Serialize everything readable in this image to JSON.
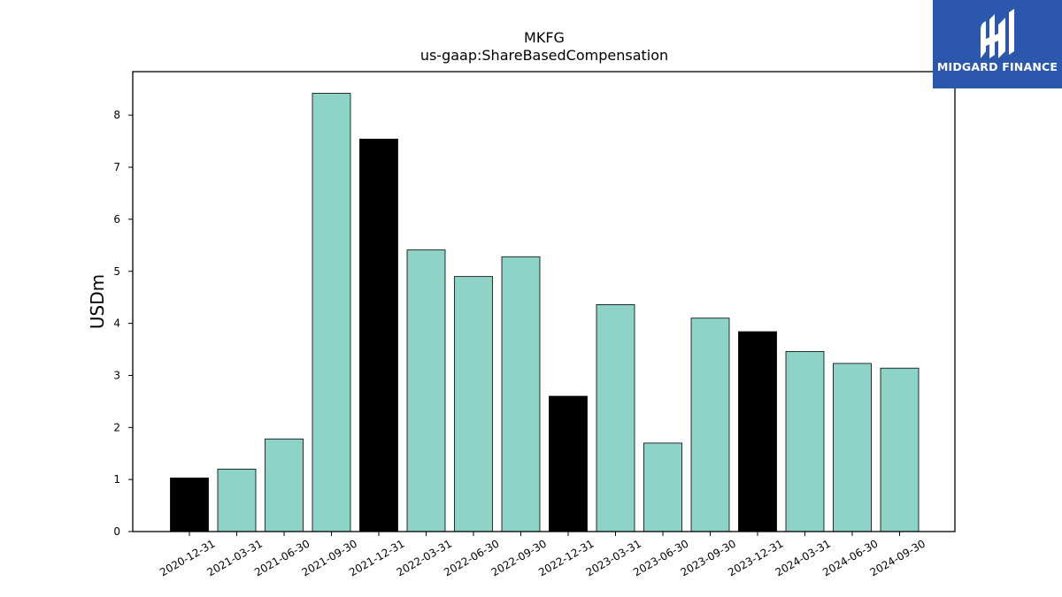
{
  "chart_data": {
    "type": "bar",
    "title": "MKFG",
    "subtitle": "us-gaap:ShareBasedCompensation",
    "xlabel": "",
    "ylabel": "USDm",
    "ylim": [
      0,
      8.8
    ],
    "yticks": [
      0,
      1,
      2,
      3,
      4,
      5,
      6,
      7,
      8
    ],
    "grid": false,
    "categories": [
      "2020-12-31",
      "2021-03-31",
      "2021-06-30",
      "2021-09-30",
      "2021-12-31",
      "2022-03-31",
      "2022-06-30",
      "2022-09-30",
      "2022-12-31",
      "2023-03-31",
      "2023-06-30",
      "2023-09-30",
      "2023-12-31",
      "2024-03-31",
      "2024-06-30",
      "2024-09-30"
    ],
    "values": [
      1.03,
      1.2,
      1.78,
      8.42,
      7.54,
      5.41,
      4.9,
      5.28,
      2.6,
      4.36,
      1.7,
      4.1,
      3.84,
      3.46,
      3.23,
      3.14
    ],
    "colors": {
      "fiscal_year_end": "#000000",
      "quarter": "#8dd3c7",
      "edge": "#000000"
    },
    "fiscal_year_end": [
      true,
      false,
      false,
      false,
      true,
      false,
      false,
      false,
      true,
      false,
      false,
      false,
      true,
      false,
      false,
      false
    ]
  },
  "logo": {
    "text": "MIDGARD FINANCE",
    "icon": "midgard-logo-icon",
    "background": "#2b57ad"
  }
}
